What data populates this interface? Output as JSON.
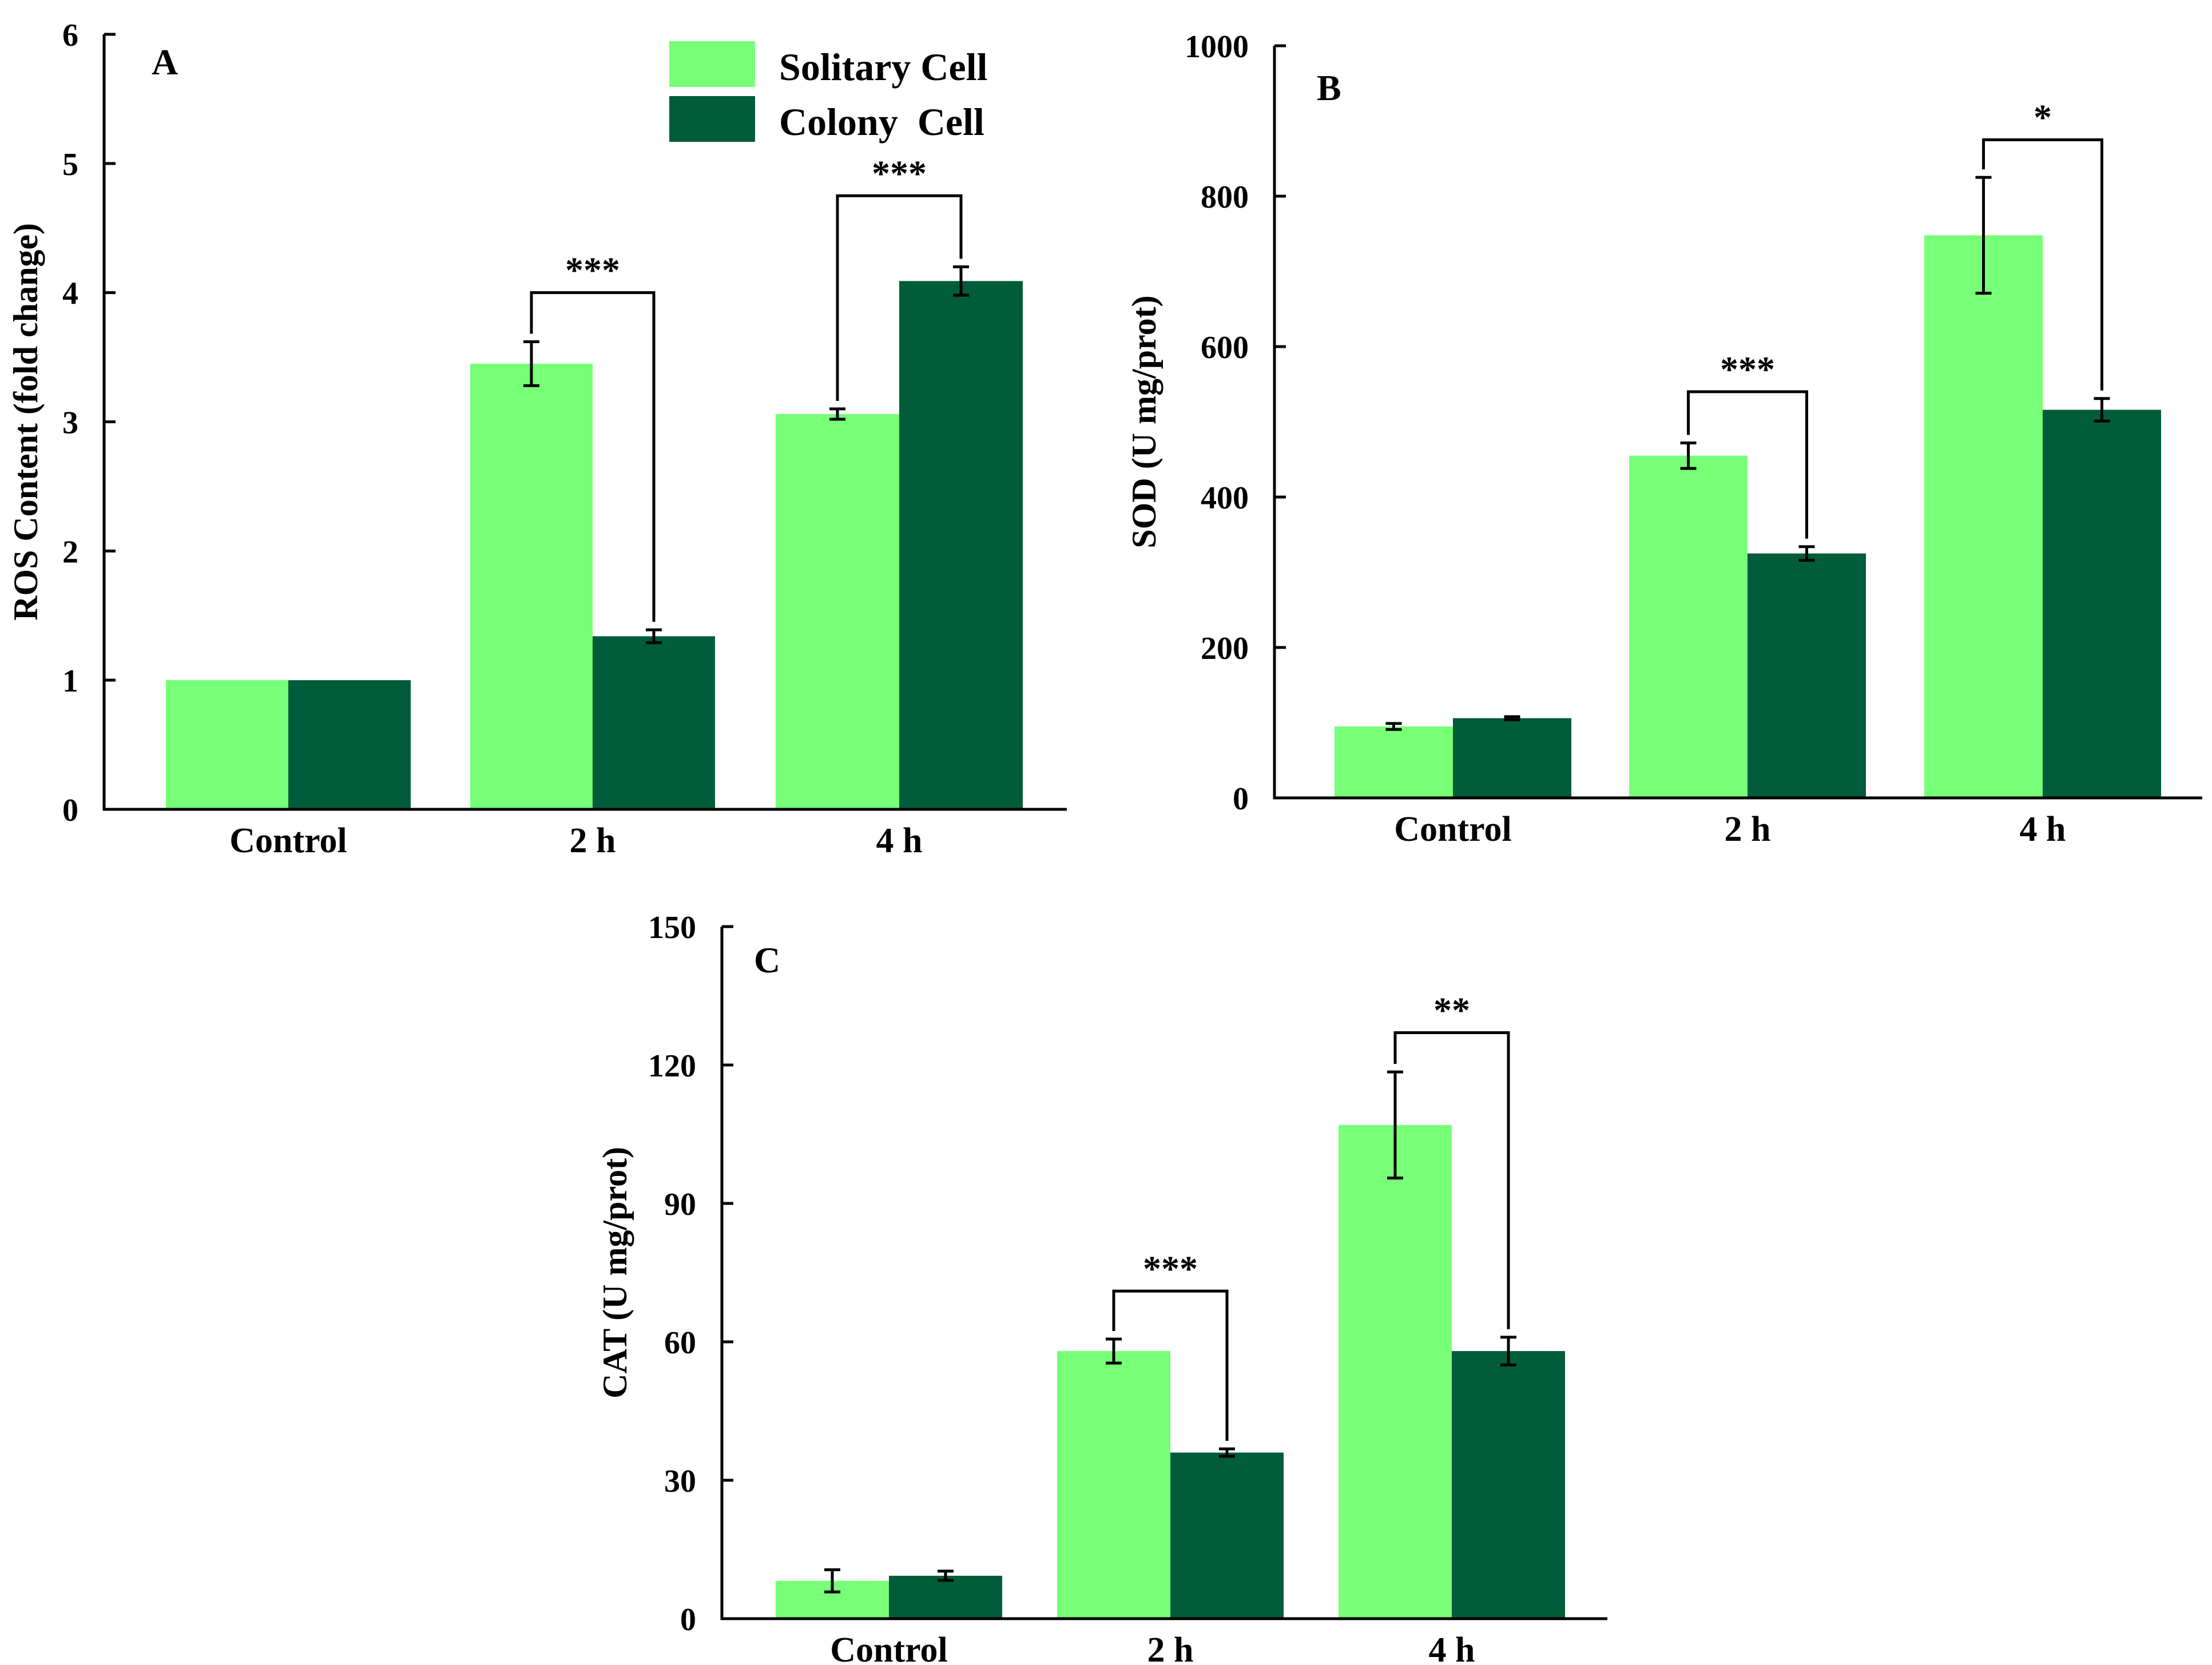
{
  "colors": {
    "solitary": "#77FF77",
    "colony": "#005C3A",
    "ink": "#000000"
  },
  "legend": {
    "solitary_label": "Solitary Cell",
    "colony_label": "Colony  Cell"
  },
  "chart_data": [
    {
      "type": "bar",
      "panel": "A",
      "ylabel": "ROS Content (fold change)",
      "categories": [
        "Control",
        "2 h",
        "4 h"
      ],
      "ylim": [
        0,
        6
      ],
      "yticks": [
        "0",
        "1",
        "2",
        "3",
        "4",
        "5",
        "6"
      ],
      "series": [
        {
          "name": "Solitary Cell",
          "values": [
            1.0,
            3.45,
            3.06
          ],
          "errors": [
            0,
            0.17,
            0.04
          ]
        },
        {
          "name": "Colony  Cell",
          "values": [
            1.0,
            1.34,
            4.09
          ],
          "errors": [
            0,
            0.05,
            0.11
          ]
        }
      ],
      "significance": [
        {
          "category": 1,
          "label": "***",
          "level": 4.0
        },
        {
          "category": 2,
          "label": "***",
          "level": 4.75
        }
      ]
    },
    {
      "type": "bar",
      "panel": "B",
      "ylabel": "SOD (U mg/prot)",
      "categories": [
        "Control",
        "2 h",
        "4 h"
      ],
      "ylim": [
        0,
        1000
      ],
      "yticks": [
        "0",
        "200",
        "400",
        "600",
        "800",
        "1000"
      ],
      "series": [
        {
          "name": "Solitary Cell",
          "values": [
            95,
            455,
            748
          ],
          "errors": [
            4,
            17,
            77
          ]
        },
        {
          "name": "Colony  Cell",
          "values": [
            106,
            325,
            516
          ],
          "errors": [
            2,
            9,
            15
          ]
        }
      ],
      "significance": [
        {
          "category": 1,
          "label": "***",
          "level": 540
        },
        {
          "category": 2,
          "label": "*",
          "level": 875
        }
      ]
    },
    {
      "type": "bar",
      "panel": "C",
      "ylabel": "CAT (U mg/prot)",
      "categories": [
        "Control",
        "2 h",
        "4 h"
      ],
      "ylim": [
        0,
        150
      ],
      "yticks": [
        "0",
        "30",
        "60",
        "90",
        "120",
        "150"
      ],
      "series": [
        {
          "name": "Solitary Cell",
          "values": [
            8.2,
            58,
            107
          ],
          "errors": [
            2.4,
            2.6,
            11.5
          ]
        },
        {
          "name": "Colony  Cell",
          "values": [
            9.3,
            36,
            58
          ],
          "errors": [
            1.0,
            0.8,
            3.0
          ]
        }
      ],
      "significance": [
        {
          "category": 1,
          "label": "***",
          "level": 71
        },
        {
          "category": 2,
          "label": "**",
          "level": 127
        }
      ]
    }
  ]
}
